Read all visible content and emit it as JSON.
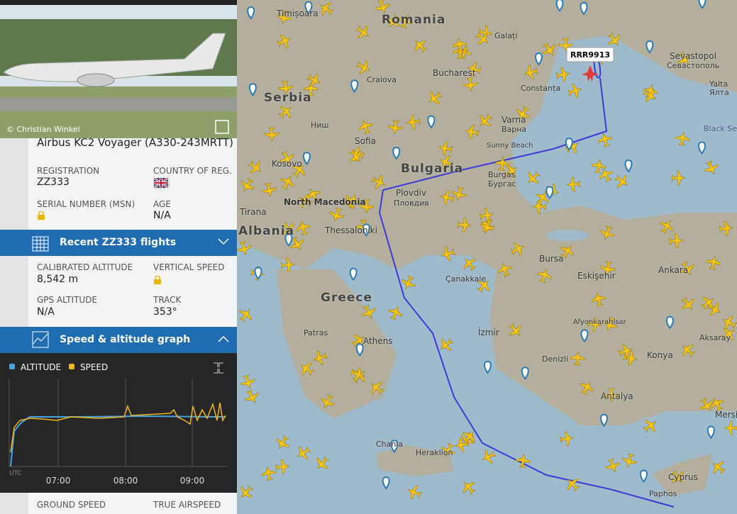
{
  "photo": {
    "credit": "© Christian Winkel"
  },
  "aircraft": {
    "model": "Airbus KC2 Voyager (A330-243MRTT)",
    "fields": [
      {
        "label": "REGISTRATION",
        "value": "ZZ333"
      },
      {
        "label": "COUNTRY OF REG."
      },
      {
        "label": "SERIAL NUMBER (MSN)"
      },
      {
        "label": "AGE",
        "value": "N/A"
      }
    ]
  },
  "recent_flights": {
    "title": "Recent ZZ333 flights"
  },
  "flight_data": {
    "fields": [
      {
        "label": "CALIBRATED ALTITUDE",
        "value": "8,542 m"
      },
      {
        "label": "VERTICAL SPEED"
      },
      {
        "label": "GPS ALTITUDE",
        "value": "N/A"
      },
      {
        "label": "TRACK",
        "value": "353°"
      }
    ]
  },
  "graph": {
    "title": "Speed & altitude graph",
    "legend": [
      "ALTITUDE",
      "SPEED"
    ],
    "x_labels": [
      "UTC",
      "07:00",
      "08:00",
      "09:00"
    ]
  },
  "speed": {
    "fields": [
      {
        "label": "GROUND SPEED"
      },
      {
        "label": "TRUE AIRSPEED"
      }
    ]
  },
  "map": {
    "callsign": "RRR9913",
    "labels": [
      "Romania",
      "Serbia",
      "Bulgaria",
      "Greece",
      "Albania",
      "North Macedonia",
      "Bucharest",
      "Craiova",
      "Constanța",
      "Varna",
      "Варна",
      "Sofia",
      "Plovdiv",
      "Пловдив",
      "Burgas",
      "Бургас",
      "Sunny Beach",
      "Thessaloniki",
      "Athens",
      "Patras",
      "İzmir",
      "Eskişehir",
      "Ankara",
      "Konya",
      "Denizli",
      "Bursa",
      "Çanakkale",
      "Heraklion",
      "Chania",
      "Cyprus",
      "Paphos",
      "Sevastopol",
      "Севастополь",
      "Yalta",
      "Ялта",
      "Black Sea",
      "Aksaray",
      "Afyonkarahisar",
      "Timișoara",
      "Ниш",
      "Kosovo",
      "Tirana",
      "Galați",
      "Antalya",
      "Mersin"
    ]
  }
}
